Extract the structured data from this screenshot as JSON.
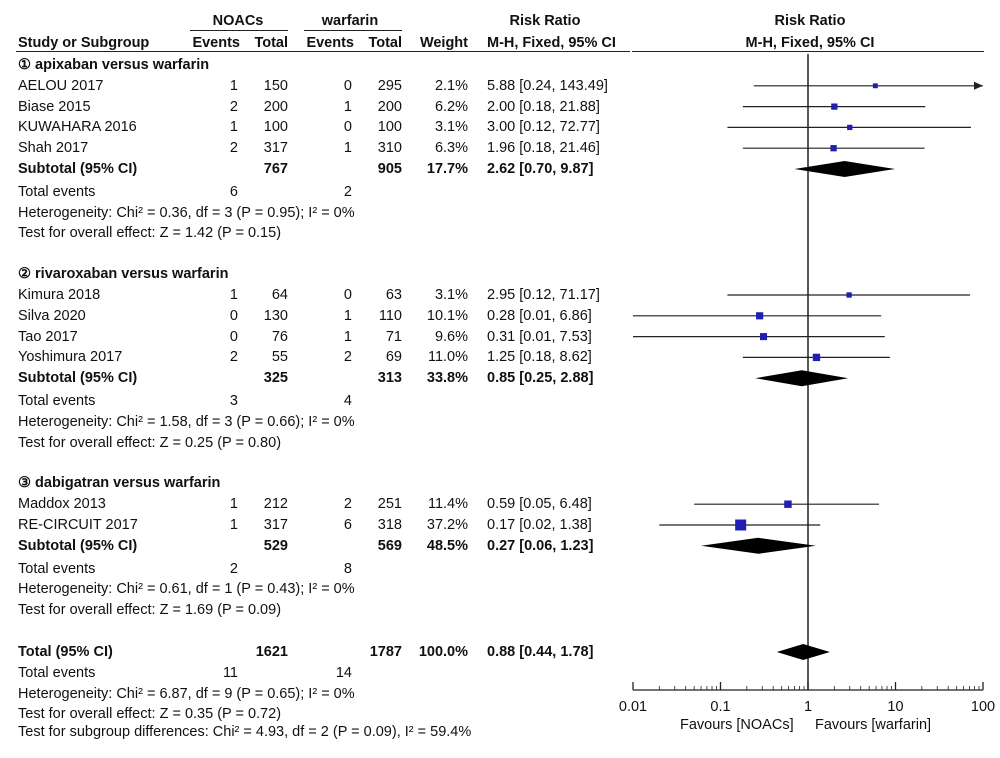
{
  "header": {
    "group1": "NOACs",
    "group2": "warfarin",
    "rr_title": "Risk Ratio",
    "plot_title": "Risk Ratio",
    "col_study": "Study or Subgroup",
    "col_events1": "Events",
    "col_total1": "Total",
    "col_events2": "Events",
    "col_total2": "Total",
    "col_weight": "Weight",
    "col_ci": "M-H, Fixed, 95% CI",
    "plot_ci": "M-H, Fixed, 95% CI"
  },
  "chart_data": {
    "type": "forest",
    "x_scale": "log",
    "xlim": [
      0.01,
      100
    ],
    "x_ticks": [
      "0.01",
      "0.1",
      "1",
      "10",
      "100"
    ],
    "x_tick_values": [
      0.01,
      0.1,
      1,
      10,
      100
    ],
    "favours_left": "Favours [NOACs]",
    "favours_right": "Favours [warfarin]",
    "subgroups": [
      {
        "title": "① apixaban versus warfarin",
        "studies": [
          {
            "name": "AELOU 2017",
            "e1": "1",
            "t1": "150",
            "e2": "0",
            "t2": "295",
            "weight": "2.1%",
            "ci_text": "5.88 [0.24, 143.49]",
            "rr": 5.88,
            "lo": 0.24,
            "hi": 143.49,
            "w": 2.1
          },
          {
            "name": "Biase 2015",
            "e1": "2",
            "t1": "200",
            "e2": "1",
            "t2": "200",
            "weight": "6.2%",
            "ci_text": "2.00 [0.18, 21.88]",
            "rr": 2.0,
            "lo": 0.18,
            "hi": 21.88,
            "w": 6.2
          },
          {
            "name": "KUWAHARA 2016",
            "e1": "1",
            "t1": "100",
            "e2": "0",
            "t2": "100",
            "weight": "3.1%",
            "ci_text": "3.00 [0.12, 72.77]",
            "rr": 3.0,
            "lo": 0.12,
            "hi": 72.77,
            "w": 3.1
          },
          {
            "name": "Shah 2017",
            "e1": "2",
            "t1": "317",
            "e2": "1",
            "t2": "310",
            "weight": "6.3%",
            "ci_text": "1.96 [0.18, 21.46]",
            "rr": 1.96,
            "lo": 0.18,
            "hi": 21.46,
            "w": 6.3
          }
        ],
        "subtotal": {
          "label": "Subtotal (95% CI)",
          "t1": "767",
          "t2": "905",
          "weight": "17.7%",
          "ci_text": "2.62 [0.70, 9.87]",
          "rr": 2.62,
          "lo": 0.7,
          "hi": 9.87
        },
        "total_events": {
          "label": "Total events",
          "e1": "6",
          "e2": "2"
        },
        "heterogeneity": "Heterogeneity: Chi² = 0.36, df = 3 (P = 0.95); I² = 0%",
        "overall": "Test for overall effect: Z = 1.42 (P = 0.15)"
      },
      {
        "title": "② rivaroxaban versus warfarin",
        "studies": [
          {
            "name": "Kimura 2018",
            "e1": "1",
            "t1": "64",
            "e2": "0",
            "t2": "63",
            "weight": "3.1%",
            "ci_text": "2.95 [0.12, 71.17]",
            "rr": 2.95,
            "lo": 0.12,
            "hi": 71.17,
            "w": 3.1
          },
          {
            "name": "Silva 2020",
            "e1": "0",
            "t1": "130",
            "e2": "1",
            "t2": "110",
            "weight": "10.1%",
            "ci_text": "0.28 [0.01, 6.86]",
            "rr": 0.28,
            "lo": 0.01,
            "hi": 6.86,
            "w": 10.1
          },
          {
            "name": "Tao 2017",
            "e1": "0",
            "t1": "76",
            "e2": "1",
            "t2": "71",
            "weight": "9.6%",
            "ci_text": "0.31 [0.01, 7.53]",
            "rr": 0.31,
            "lo": 0.01,
            "hi": 7.53,
            "w": 9.6
          },
          {
            "name": "Yoshimura 2017",
            "e1": "2",
            "t1": "55",
            "e2": "2",
            "t2": "69",
            "weight": "11.0%",
            "ci_text": "1.25 [0.18, 8.62]",
            "rr": 1.25,
            "lo": 0.18,
            "hi": 8.62,
            "w": 11.0
          }
        ],
        "subtotal": {
          "label": "Subtotal (95% CI)",
          "t1": "325",
          "t2": "313",
          "weight": "33.8%",
          "ci_text": "0.85 [0.25, 2.88]",
          "rr": 0.85,
          "lo": 0.25,
          "hi": 2.88
        },
        "total_events": {
          "label": "Total events",
          "e1": "3",
          "e2": "4"
        },
        "heterogeneity": "Heterogeneity: Chi² = 1.58, df = 3 (P = 0.66); I² = 0%",
        "overall": "Test for overall effect: Z = 0.25 (P = 0.80)"
      },
      {
        "title": "③ dabigatran versus warfarin",
        "studies": [
          {
            "name": "Maddox 2013",
            "e1": "1",
            "t1": "212",
            "e2": "2",
            "t2": "251",
            "weight": "11.4%",
            "ci_text": "0.59 [0.05, 6.48]",
            "rr": 0.59,
            "lo": 0.05,
            "hi": 6.48,
            "w": 11.4
          },
          {
            "name": "RE-CIRCUIT 2017",
            "e1": "1",
            "t1": "317",
            "e2": "6",
            "t2": "318",
            "weight": "37.2%",
            "ci_text": "0.17 [0.02, 1.38]",
            "rr": 0.17,
            "lo": 0.02,
            "hi": 1.38,
            "w": 37.2
          }
        ],
        "subtotal": {
          "label": "Subtotal (95% CI)",
          "t1": "529",
          "t2": "569",
          "weight": "48.5%",
          "ci_text": "0.27 [0.06, 1.23]",
          "rr": 0.27,
          "lo": 0.06,
          "hi": 1.23
        },
        "total_events": {
          "label": "Total events",
          "e1": "2",
          "e2": "8"
        },
        "heterogeneity": "Heterogeneity: Chi² = 0.61, df = 1 (P = 0.43); I² = 0%",
        "overall": "Test for overall effect: Z = 1.69 (P = 0.09)"
      }
    ],
    "total": {
      "label": "Total (95% CI)",
      "t1": "1621",
      "t2": "1787",
      "weight": "100.0%",
      "ci_text": "0.88 [0.44, 1.78]",
      "rr": 0.88,
      "lo": 0.44,
      "hi": 1.78
    },
    "total_events": {
      "label": "Total events",
      "e1": "11",
      "e2": "14"
    },
    "heterogeneity": "Heterogeneity: Chi² = 6.87, df = 9 (P = 0.65); I² = 0%",
    "overall": "Test for overall effect: Z = 0.35 (P = 0.72)",
    "subgroup_diff": "Test for subgroup differences: Chi² = 4.93, df = 2 (P = 0.09), I² = 59.4%",
    "colors": {
      "marker": "#1f1fb4",
      "text": "#111111",
      "line": "#222222"
    }
  }
}
